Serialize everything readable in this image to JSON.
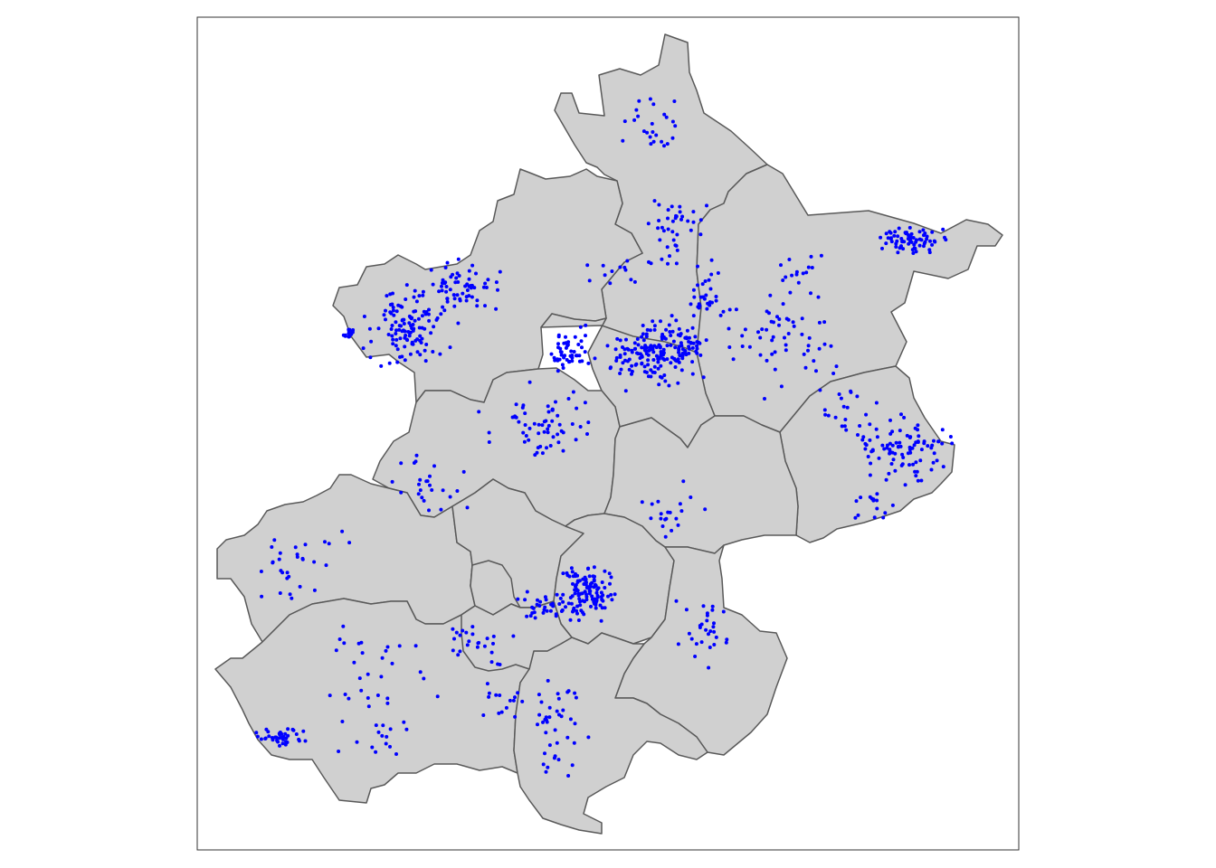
{
  "map": {
    "kind": "district-boundary-map-with-point-overlay",
    "region_fill": "#d0d0d0",
    "region_stroke": "#595959",
    "point_color": "#0000ff",
    "frame_color": "#333333",
    "background": "#ffffff",
    "title": "",
    "legend": "none",
    "districts": [
      {
        "id": "north"
      },
      {
        "id": "northeast"
      },
      {
        "id": "northwest"
      },
      {
        "id": "central-north"
      },
      {
        "id": "east"
      },
      {
        "id": "west-central"
      },
      {
        "id": "central-east"
      },
      {
        "id": "southwest-upper"
      },
      {
        "id": "west-inner"
      },
      {
        "id": "core-west"
      },
      {
        "id": "core"
      },
      {
        "id": "southeast"
      },
      {
        "id": "southwest-lower"
      },
      {
        "id": "south"
      },
      {
        "id": "south-inner"
      }
    ]
  }
}
